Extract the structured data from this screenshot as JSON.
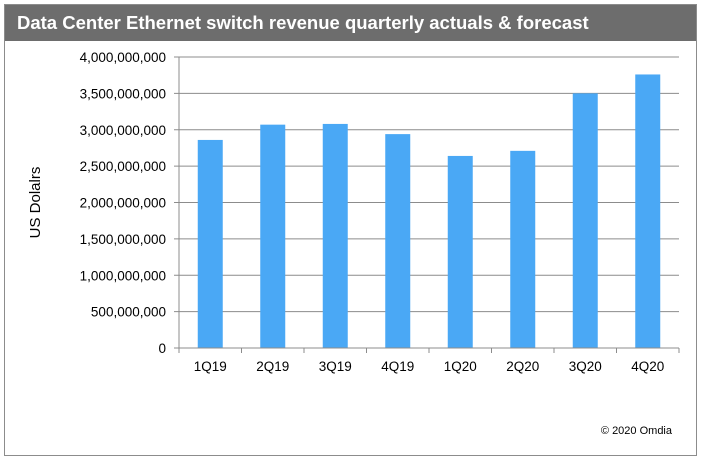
{
  "chart_data": {
    "type": "bar",
    "title": "Data Center Ethernet switch revenue quarterly actuals & forecast",
    "xlabel": "",
    "ylabel": "US Dolalrs",
    "categories": [
      "1Q19",
      "2Q19",
      "3Q19",
      "4Q19",
      "1Q20",
      "2Q20",
      "3Q20",
      "4Q20"
    ],
    "series": [
      {
        "values": [
          2860000000,
          3070000000,
          3080000000,
          2940000000,
          2640000000,
          2710000000,
          3500000000,
          3760000000
        ]
      }
    ],
    "ylim": [
      0,
      4000000000
    ],
    "yticks": [
      "0",
      "500,000,000",
      "1,000,000,000",
      "1,500,000,000",
      "2,000,000,000",
      "2,500,000,000",
      "3,000,000,000",
      "3,500,000,000",
      "4,000,000,000"
    ],
    "grid": true,
    "legend": "none",
    "colors": {
      "bar": "#4aa8f5",
      "title_bar": "#6d6d6d",
      "grid": "#8c8c8c"
    }
  },
  "credit": "© 2020 Omdia"
}
